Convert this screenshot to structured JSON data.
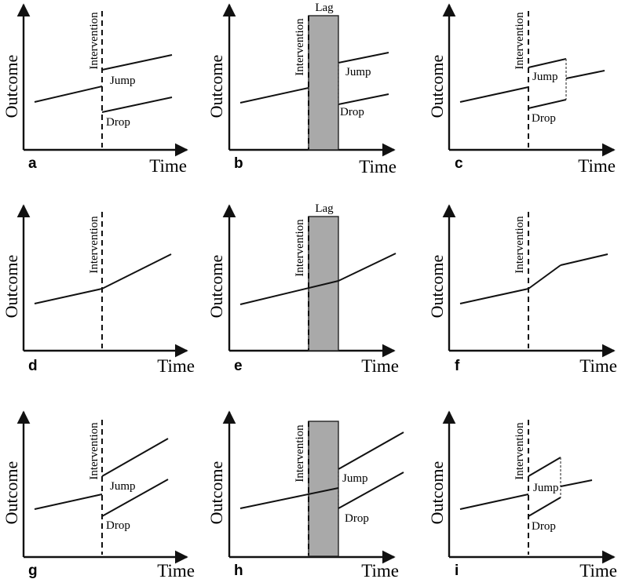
{
  "figure": {
    "outcome_label": "Outcome",
    "time_label": "Time",
    "intervention_label": "Intervention",
    "lag_label": "Lag",
    "jump_label": "Jump",
    "drop_label": "Drop",
    "panels": [
      {
        "letter": "a",
        "lag": false,
        "pattern": "level change",
        "labels": [
          "Jump",
          "Drop"
        ]
      },
      {
        "letter": "b",
        "lag": true,
        "pattern": "level change after lag",
        "labels": [
          "Jump",
          "Drop"
        ]
      },
      {
        "letter": "c",
        "lag": false,
        "pattern": "temporary level change",
        "labels": [
          "Jump",
          "Drop"
        ]
      },
      {
        "letter": "d",
        "lag": false,
        "pattern": "slope change",
        "labels": []
      },
      {
        "letter": "e",
        "lag": true,
        "pattern": "slope change after lag",
        "labels": []
      },
      {
        "letter": "f",
        "lag": false,
        "pattern": "temporary slope change",
        "labels": []
      },
      {
        "letter": "g",
        "lag": false,
        "pattern": "level and slope change",
        "labels": [
          "Jump",
          "Drop"
        ]
      },
      {
        "letter": "h",
        "lag": true,
        "pattern": "level and slope change after lag",
        "labels": [
          "Jump",
          "Drop"
        ]
      },
      {
        "letter": "i",
        "lag": false,
        "pattern": "temporary level and slope change",
        "labels": [
          "Jump",
          "Drop"
        ]
      }
    ]
  }
}
